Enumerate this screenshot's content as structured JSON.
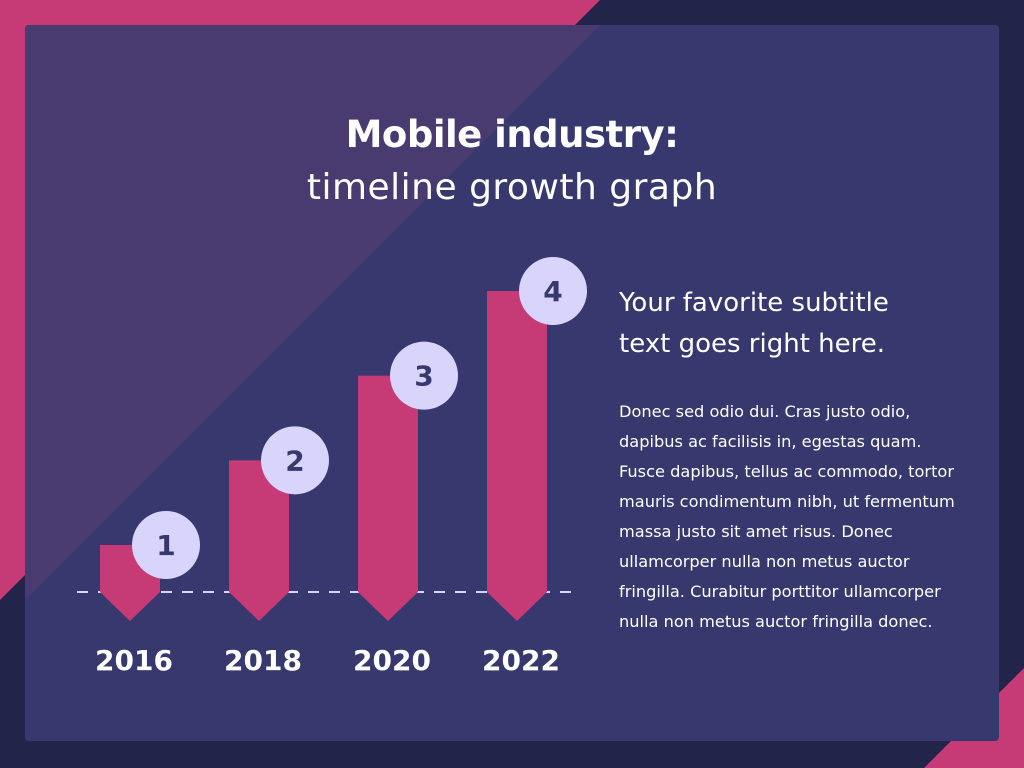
{
  "slide": {
    "title": "Mobile industry:",
    "subtitle": "timeline growth graph"
  },
  "side": {
    "heading_line1": "Your favorite subtitle",
    "heading_line2": "text goes right here.",
    "body": "Donec sed odio dui. Cras justo odio, dapibus ac facilisis in, egestas quam. Fusce dapibus, tellus ac commodo, tortor mauris condimentum nibh, ut fermentum massa justo sit amet risus. Donec ullamcorper nulla non metus auctor fringilla. Curabitur porttitor ullamcorper nulla non metus auctor fringilla donec."
  },
  "colors": {
    "background": "#23244a",
    "panel": "#37386e",
    "accent": "#c63a75",
    "badge": "#d8d4fb",
    "badge_text": "#37386e"
  },
  "chart_data": {
    "type": "bar",
    "categories": [
      "2016",
      "2018",
      "2020",
      "2022"
    ],
    "values": [
      1,
      2,
      3,
      4
    ],
    "title": "Mobile industry:",
    "subtitle": "timeline growth graph",
    "xlabel": "",
    "ylabel": "",
    "ylim": [
      0,
      4
    ],
    "grid": false,
    "legend": "none",
    "baseline": "dashed"
  }
}
